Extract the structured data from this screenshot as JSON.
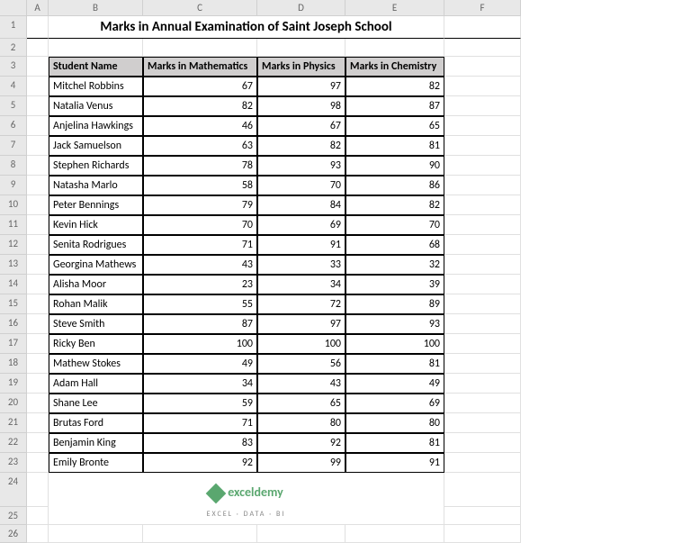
{
  "columns": [
    "",
    "A",
    "B",
    "C",
    "D",
    "E",
    "F"
  ],
  "title": "Marks in Annual Examination of Saint Joseph School",
  "headers": [
    "Student Name",
    "Marks in Mathematics",
    "Marks in Physics",
    "Marks in Chemistry"
  ],
  "rows": [
    {
      "n": "4",
      "name": "Mitchel Robbins",
      "m": 67,
      "p": 97,
      "c": 82
    },
    {
      "n": "5",
      "name": "Natalia Venus",
      "m": 82,
      "p": 98,
      "c": 87
    },
    {
      "n": "6",
      "name": "Anjelina Hawkings",
      "m": 46,
      "p": 67,
      "c": 65
    },
    {
      "n": "7",
      "name": "Jack Samuelson",
      "m": 63,
      "p": 82,
      "c": 81
    },
    {
      "n": "8",
      "name": "Stephen Richards",
      "m": 78,
      "p": 93,
      "c": 90
    },
    {
      "n": "9",
      "name": "Natasha Marlo",
      "m": 58,
      "p": 70,
      "c": 86
    },
    {
      "n": "10",
      "name": "Peter Bennings",
      "m": 79,
      "p": 84,
      "c": 82
    },
    {
      "n": "11",
      "name": "Kevin Hick",
      "m": 70,
      "p": 69,
      "c": 70
    },
    {
      "n": "12",
      "name": "Senita Rodrigues",
      "m": 71,
      "p": 91,
      "c": 68
    },
    {
      "n": "13",
      "name": "Georgina Mathews",
      "m": 43,
      "p": 33,
      "c": 32
    },
    {
      "n": "14",
      "name": "Alisha Moor",
      "m": 23,
      "p": 34,
      "c": 39
    },
    {
      "n": "15",
      "name": "Rohan Malik",
      "m": 55,
      "p": 72,
      "c": 89
    },
    {
      "n": "16",
      "name": "Steve Smith",
      "m": 87,
      "p": 97,
      "c": 93
    },
    {
      "n": "17",
      "name": "Ricky Ben",
      "m": 100,
      "p": 100,
      "c": 100
    },
    {
      "n": "18",
      "name": "Mathew Stokes",
      "m": 49,
      "p": 56,
      "c": 81
    },
    {
      "n": "19",
      "name": "Adam Hall",
      "m": 34,
      "p": 43,
      "c": 49
    },
    {
      "n": "20",
      "name": "Shane Lee",
      "m": 59,
      "p": 65,
      "c": 69
    },
    {
      "n": "21",
      "name": "Brutas Ford",
      "m": 71,
      "p": 80,
      "c": 80
    },
    {
      "n": "22",
      "name": "Benjamin King",
      "m": 83,
      "p": 92,
      "c": 81
    },
    {
      "n": "23",
      "name": "Emily Bronte",
      "m": 92,
      "p": 99,
      "c": 91
    }
  ],
  "logo_text": "exceldemy",
  "logo_sub": "EXCEL · DATA · BI",
  "trailing_rows": [
    "24",
    "25",
    "26"
  ]
}
